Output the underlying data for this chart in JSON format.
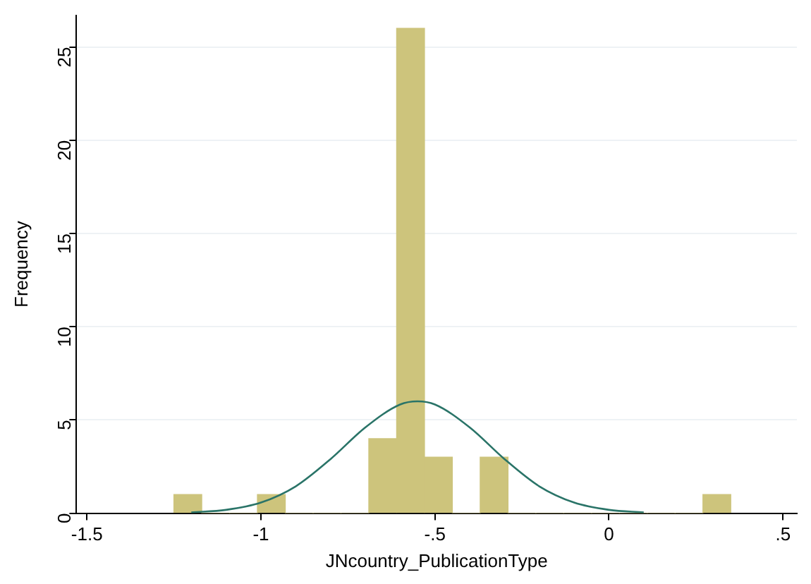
{
  "chart_data": {
    "type": "histogram",
    "xlabel": "JNcountry_PublicationType",
    "ylabel": "Frequency",
    "bins": [
      -1.25,
      -1.17,
      -1.09,
      -1.01,
      -0.93,
      -0.85,
      -0.77,
      -0.69,
      -0.61,
      -0.53,
      -0.45,
      -0.37,
      -0.29,
      -0.21,
      -0.13,
      -0.05,
      0.03,
      0.11,
      0.19,
      0.27,
      0.35
    ],
    "values": [
      1,
      0,
      0,
      1,
      0,
      0,
      0,
      4,
      26,
      3,
      0,
      3,
      0,
      0,
      0,
      0,
      0,
      0,
      0,
      1
    ],
    "color": "#cdc47c",
    "series": [
      {
        "type": "line",
        "color": "#2a7468",
        "x": [
          -1.2,
          -1.1,
          -1.0,
          -0.9,
          -0.8,
          -0.7,
          -0.6,
          -0.55,
          -0.5,
          -0.4,
          -0.3,
          -0.2,
          -0.1,
          0,
          0.1
        ],
        "values": [
          0.04,
          0.18,
          0.57,
          1.44,
          2.9,
          4.6,
          5.83,
          6,
          5.83,
          4.6,
          2.9,
          1.44,
          0.57,
          0.18,
          0.04
        ]
      }
    ],
    "xlim": [
      -1.53,
      0.54
    ],
    "xticks": [
      {
        "value": -1.5,
        "label": "-1.5"
      },
      {
        "value": -1,
        "label": "-1"
      },
      {
        "value": -0.5,
        "label": "-.5"
      },
      {
        "value": 0,
        "label": "0"
      },
      {
        "value": 0.5,
        "label": ".5"
      }
    ],
    "ylim": [
      0,
      26.7
    ],
    "yticks": [
      0,
      5,
      10,
      15,
      20,
      25
    ],
    "grid": "y",
    "legend": false,
    "marker": "none"
  }
}
